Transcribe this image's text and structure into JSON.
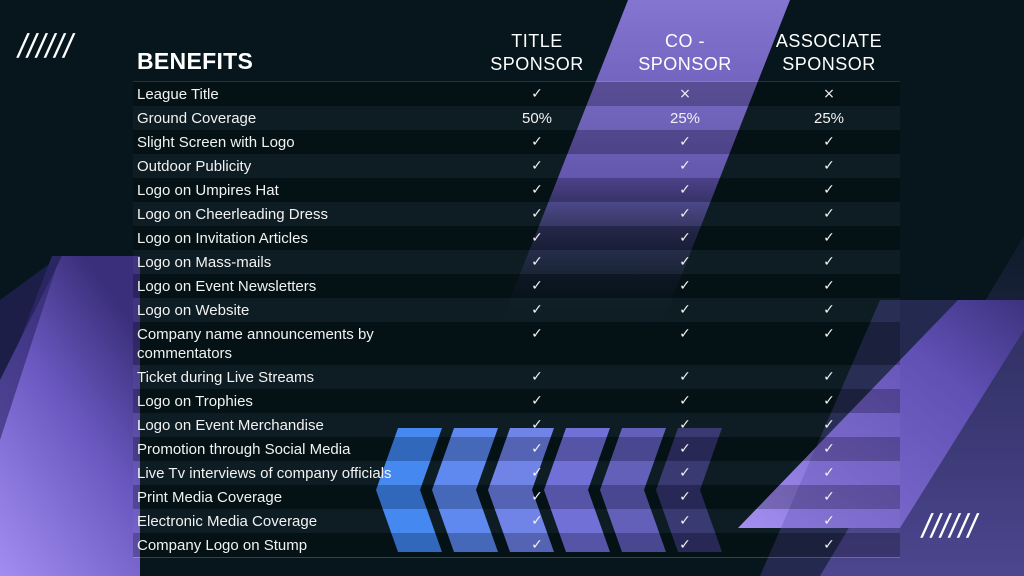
{
  "decor": {
    "slashes_top_left": "//////",
    "slashes_bottom_right": "//////"
  },
  "table": {
    "headers": {
      "benefits": "BENEFITS",
      "title": [
        "TITLE",
        "SPONSOR"
      ],
      "co": [
        "CO -",
        "SPONSOR"
      ],
      "associate": [
        "ASSOCIATE",
        "SPONSOR"
      ]
    },
    "rows": [
      {
        "label": "League Title",
        "title": "✓",
        "co": "×",
        "associate": "×"
      },
      {
        "label": "Ground Coverage",
        "title": "50%",
        "co": "25%",
        "associate": "25%"
      },
      {
        "label": "Slight Screen with Logo",
        "title": "✓",
        "co": "✓",
        "associate": "✓"
      },
      {
        "label": "Outdoor Publicity",
        "title": "✓",
        "co": "✓",
        "associate": "✓"
      },
      {
        "label": "Logo on Umpires Hat",
        "title": "✓",
        "co": "✓",
        "associate": "✓"
      },
      {
        "label": "Logo on Cheerleading Dress",
        "title": "✓",
        "co": "✓",
        "associate": "✓"
      },
      {
        "label": "Logo on Invitation Articles",
        "title": "✓",
        "co": "✓",
        "associate": "✓"
      },
      {
        "label": "Logo on Mass-mails",
        "title": "✓",
        "co": "✓",
        "associate": "✓"
      },
      {
        "label": "Logo on Event Newsletters",
        "title": "✓",
        "co": "✓",
        "associate": "✓"
      },
      {
        "label": "Logo on Website",
        "title": "✓",
        "co": "✓",
        "associate": "✓"
      },
      {
        "label": "Company name announcements by commentators",
        "title": "✓",
        "co": "✓",
        "associate": "✓",
        "tall": true
      },
      {
        "label": "Ticket during Live Streams",
        "title": "✓",
        "co": "✓",
        "associate": "✓"
      },
      {
        "label": "Logo on Trophies",
        "title": "✓",
        "co": "✓",
        "associate": "✓"
      },
      {
        "label": "Logo on Event Merchandise",
        "title": "✓",
        "co": "✓",
        "associate": "✓"
      },
      {
        "label": "Promotion through Social Media",
        "title": "✓",
        "co": "✓",
        "associate": "✓"
      },
      {
        "label": "Live Tv interviews of company officials",
        "title": "✓",
        "co": "✓",
        "associate": "✓"
      },
      {
        "label": "Print Media Coverage",
        "title": "✓",
        "co": "✓",
        "associate": "✓"
      },
      {
        "label": "Electronic Media Coverage",
        "title": "✓",
        "co": "✓",
        "associate": "✓"
      },
      {
        "label": "Company Logo on Stump",
        "title": "✓",
        "co": "✓",
        "associate": "✓"
      }
    ]
  },
  "colors": {
    "background": "#06161c",
    "accent_purple": "#8f7ae6",
    "accent_blue": "#3f86f0",
    "text": "#ffffff"
  }
}
